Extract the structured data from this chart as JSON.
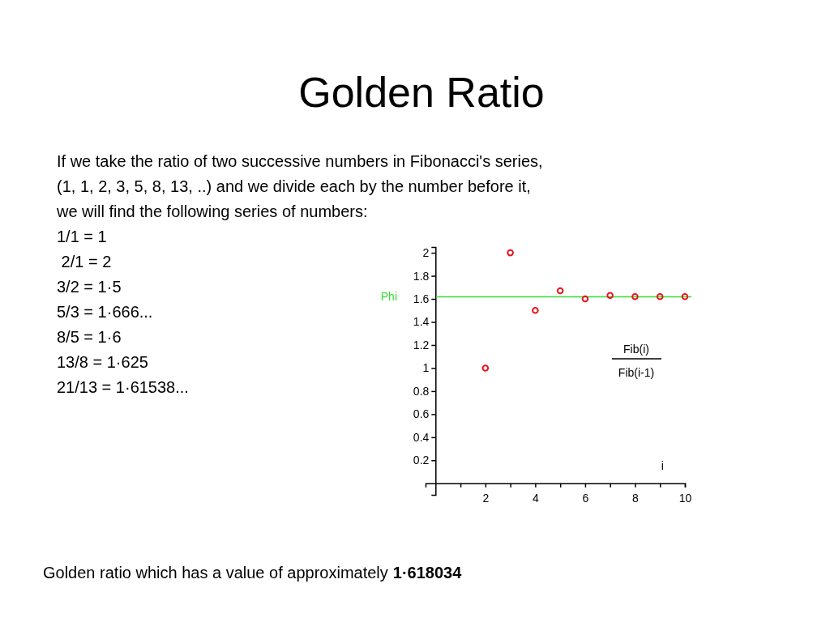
{
  "chart_data": {
    "type": "scatter",
    "title": "Golden Ratio",
    "xlabel": "i",
    "x": [
      2,
      3,
      4,
      5,
      6,
      7,
      8,
      9,
      10
    ],
    "series": [
      {
        "color": "#e8141c",
        "values": [
          1,
          2,
          1.5,
          1.67,
          1.6,
          1.63,
          1.62,
          1.62,
          1.62
        ]
      }
    ],
    "marker": "circle",
    "xlim": [
      -0.4,
      10
    ],
    "ylim": [
      -0.1,
      2.05
    ],
    "xticks": [
      {
        "value": 1,
        "label": null
      },
      2,
      {
        "value": 3,
        "label": null
      },
      4,
      {
        "value": 5,
        "label": null
      },
      6,
      {
        "value": 7,
        "label": null
      },
      8,
      {
        "value": 9,
        "label": null
      },
      10
    ],
    "yticks": [
      0.2,
      0.4,
      0.6,
      0.8,
      1,
      1.2,
      1.4,
      1.6,
      1.8,
      2
    ],
    "ref_lines": [
      {
        "axis": "y",
        "value": 1.618,
        "label": "Phi",
        "color": "#33dd33"
      }
    ],
    "annotations": [
      "If we take the ratio of two successive numbers in Fibonacci's series,",
      "(1, 1, 2, 3, 5, 8, 13, ..) and we divide each by the number before it,",
      "we will find the following series of numbers:",
      "1/1 = 1",
      " 2/1 = 2",
      "3/2 = 1·5",
      "5/3 = 1·666...",
      "8/5 = 1·6",
      "13/8 = 1·625",
      "21/13 = 1·61538...",
      "Fib(i)",
      "Fib(i-1)",
      "Golden ratio which has a value of approximately",
      "1·618034"
    ]
  }
}
